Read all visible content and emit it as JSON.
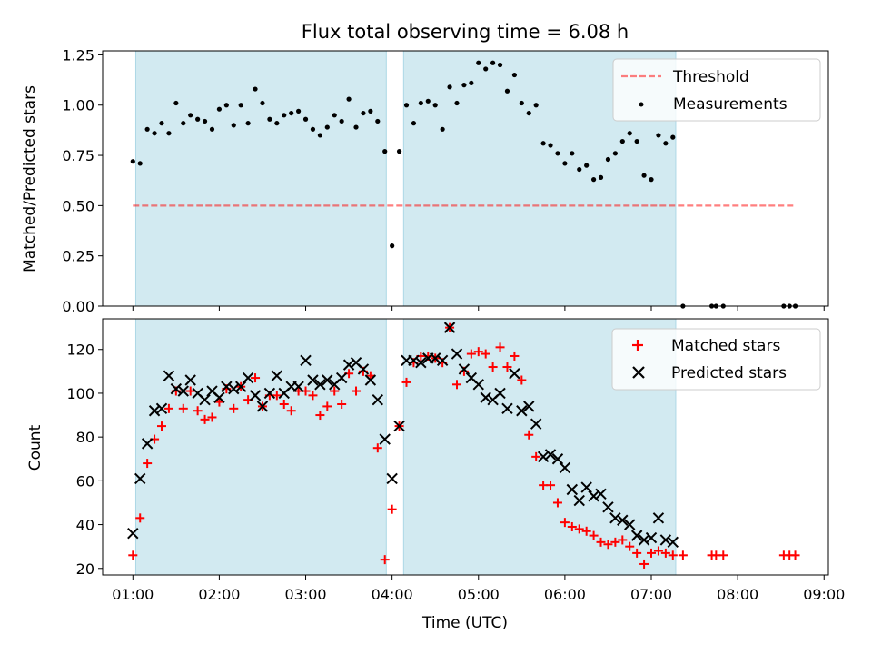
{
  "title": "Flux total observing time = 6.08 h",
  "colors": {
    "shade": "#add8e6",
    "threshold": "#ff0000",
    "measurement": "#000000",
    "matched": "#ff0000",
    "predicted": "#000000"
  },
  "chart_data": [
    {
      "type": "scatter",
      "panel": "top",
      "ylabel": "Matched/Predicted stars",
      "xlabel": "",
      "xlim_hours": [
        0.65,
        9.05
      ],
      "ylim": [
        0,
        1.27
      ],
      "yticks": [
        0.0,
        0.25,
        0.5,
        0.75,
        1.0,
        1.25
      ],
      "ytick_labels": [
        "0.00",
        "0.25",
        "0.50",
        "0.75",
        "1.00",
        "1.25"
      ],
      "xticks_hours": [
        1,
        2,
        3,
        4,
        5,
        6,
        7,
        8,
        9
      ],
      "grid": false,
      "legend_position": "top-right",
      "legend": [
        "Threshold",
        "Measurements"
      ],
      "shaded_intervals": [
        [
          "01:02",
          "03:56"
        ],
        [
          "04:08",
          "07:17"
        ]
      ],
      "threshold": {
        "name": "Threshold",
        "y": 0.5,
        "x_range": [
          "01:00",
          "08:40"
        ]
      },
      "series": [
        {
          "name": "Measurements",
          "x": [
            "01:00",
            "01:05",
            "01:10",
            "01:15",
            "01:20",
            "01:25",
            "01:30",
            "01:35",
            "01:40",
            "01:45",
            "01:50",
            "01:55",
            "02:00",
            "02:05",
            "02:10",
            "02:15",
            "02:20",
            "02:25",
            "02:30",
            "02:35",
            "02:40",
            "02:45",
            "02:50",
            "02:55",
            "03:00",
            "03:05",
            "03:10",
            "03:15",
            "03:20",
            "03:25",
            "03:30",
            "03:35",
            "03:40",
            "03:45",
            "03:50",
            "03:55",
            "04:00",
            "04:05",
            "04:10",
            "04:15",
            "04:20",
            "04:25",
            "04:30",
            "04:35",
            "04:40",
            "04:45",
            "04:50",
            "04:55",
            "05:00",
            "05:05",
            "05:10",
            "05:15",
            "05:20",
            "05:25",
            "05:30",
            "05:35",
            "05:40",
            "05:45",
            "05:50",
            "05:55",
            "06:00",
            "06:05",
            "06:10",
            "06:15",
            "06:20",
            "06:25",
            "06:30",
            "06:35",
            "06:40",
            "06:45",
            "06:50",
            "06:55",
            "07:00",
            "07:05",
            "07:10",
            "07:15",
            "07:22",
            "07:42",
            "07:45",
            "07:50",
            "08:32",
            "08:36",
            "08:40"
          ],
          "y": [
            0.72,
            0.71,
            0.88,
            0.86,
            0.91,
            0.86,
            1.01,
            0.91,
            0.95,
            0.93,
            0.92,
            0.88,
            0.98,
            1.0,
            0.9,
            1.0,
            0.91,
            1.08,
            1.01,
            0.93,
            0.91,
            0.95,
            0.96,
            0.97,
            0.93,
            0.88,
            0.85,
            0.89,
            0.95,
            0.92,
            1.03,
            0.89,
            0.96,
            0.97,
            0.92,
            0.77,
            0.3,
            0.77,
            1.0,
            0.91,
            1.01,
            1.02,
            1.0,
            0.88,
            1.09,
            1.01,
            1.1,
            1.11,
            1.21,
            1.18,
            1.21,
            1.2,
            1.07,
            1.15,
            1.01,
            0.96,
            1.0,
            0.81,
            0.8,
            0.76,
            0.71,
            0.76,
            0.68,
            0.7,
            0.63,
            0.64,
            0.73,
            0.76,
            0.82,
            0.86,
            0.82,
            0.65,
            0.63,
            0.85,
            0.81,
            0.84,
            0.0,
            0.0,
            0.0,
            0.0,
            0.0,
            0.0,
            0.0
          ]
        }
      ]
    },
    {
      "type": "scatter",
      "panel": "bottom",
      "ylabel": "Count",
      "xlabel": "Time (UTC)",
      "xlim_hours": [
        0.65,
        9.05
      ],
      "ylim": [
        17,
        134
      ],
      "yticks": [
        20,
        40,
        60,
        80,
        100,
        120
      ],
      "ytick_labels": [
        "20",
        "40",
        "60",
        "80",
        "100",
        "120"
      ],
      "xticks_hours": [
        1,
        2,
        3,
        4,
        5,
        6,
        7,
        8,
        9
      ],
      "xtick_labels": [
        "01:00",
        "02:00",
        "03:00",
        "04:00",
        "05:00",
        "06:00",
        "07:00",
        "08:00",
        "09:00"
      ],
      "grid": false,
      "legend_position": "top-right",
      "legend": [
        "Matched stars",
        "Predicted stars"
      ],
      "shaded_intervals": [
        [
          "01:02",
          "03:56"
        ],
        [
          "04:08",
          "07:17"
        ]
      ],
      "series": [
        {
          "name": "Matched stars",
          "x": [
            "01:00",
            "01:05",
            "01:10",
            "01:15",
            "01:20",
            "01:25",
            "01:30",
            "01:35",
            "01:40",
            "01:45",
            "01:50",
            "01:55",
            "02:00",
            "02:05",
            "02:10",
            "02:15",
            "02:20",
            "02:25",
            "02:30",
            "02:35",
            "02:40",
            "02:45",
            "02:50",
            "02:55",
            "03:00",
            "03:05",
            "03:10",
            "03:15",
            "03:20",
            "03:25",
            "03:30",
            "03:35",
            "03:40",
            "03:45",
            "03:50",
            "03:55",
            "04:00",
            "04:05",
            "04:10",
            "04:15",
            "04:20",
            "04:25",
            "04:30",
            "04:35",
            "04:40",
            "04:45",
            "04:50",
            "04:55",
            "05:00",
            "05:05",
            "05:10",
            "05:15",
            "05:20",
            "05:25",
            "05:30",
            "05:35",
            "05:40",
            "05:45",
            "05:50",
            "05:55",
            "06:00",
            "06:05",
            "06:10",
            "06:15",
            "06:20",
            "06:25",
            "06:30",
            "06:35",
            "06:40",
            "06:45",
            "06:50",
            "06:55",
            "07:00",
            "07:05",
            "07:10",
            "07:15",
            "07:22",
            "07:42",
            "07:45",
            "07:50",
            "08:32",
            "08:36",
            "08:40"
          ],
          "y": [
            26,
            43,
            68,
            79,
            85,
            93,
            101,
            93,
            101,
            92,
            88,
            89,
            96,
            102,
            93,
            103,
            97,
            107,
            94,
            99,
            99,
            95,
            92,
            101,
            101,
            99,
            90,
            94,
            101,
            95,
            109,
            101,
            110,
            108,
            75,
            24,
            47,
            85,
            105,
            114,
            117,
            117,
            116,
            114,
            130,
            104,
            110,
            118,
            119,
            118,
            112,
            121,
            112,
            117,
            106,
            81,
            71,
            58,
            58,
            50,
            41,
            39,
            38,
            37,
            35,
            32,
            31,
            32,
            33,
            30,
            27,
            22,
            27,
            28,
            27,
            26,
            26,
            26,
            26,
            26,
            26,
            26,
            26
          ]
        },
        {
          "name": "Predicted stars",
          "x": [
            "01:00",
            "01:05",
            "01:10",
            "01:15",
            "01:20",
            "01:25",
            "01:30",
            "01:35",
            "01:40",
            "01:45",
            "01:50",
            "01:55",
            "02:00",
            "02:05",
            "02:10",
            "02:15",
            "02:20",
            "02:25",
            "02:30",
            "02:35",
            "02:40",
            "02:45",
            "02:50",
            "02:55",
            "03:00",
            "03:05",
            "03:10",
            "03:15",
            "03:20",
            "03:25",
            "03:30",
            "03:35",
            "03:40",
            "03:45",
            "03:50",
            "03:55",
            "04:00",
            "04:05",
            "04:10",
            "04:15",
            "04:20",
            "04:25",
            "04:30",
            "04:35",
            "04:40",
            "04:45",
            "04:50",
            "04:55",
            "05:00",
            "05:05",
            "05:10",
            "05:15",
            "05:20",
            "05:25",
            "05:30",
            "05:35",
            "05:40",
            "05:45",
            "05:50",
            "05:55",
            "06:00",
            "06:05",
            "06:10",
            "06:15",
            "06:20",
            "06:25",
            "06:30",
            "06:35",
            "06:40",
            "06:45",
            "06:50",
            "06:55",
            "07:00",
            "07:05",
            "07:10",
            "07:15"
          ],
          "y": [
            36,
            61,
            77,
            92,
            93,
            108,
            102,
            101,
            106,
            100,
            97,
            101,
            98,
            103,
            102,
            103,
            107,
            99,
            94,
            100,
            108,
            100,
            103,
            103,
            115,
            106,
            104,
            106,
            104,
            107,
            113,
            114,
            111,
            106,
            97,
            79,
            61,
            85,
            115,
            115,
            114,
            116,
            116,
            115,
            130,
            118,
            111,
            107,
            104,
            98,
            97,
            100,
            93,
            109,
            92,
            94,
            86,
            71,
            72,
            70,
            66,
            56,
            51,
            57,
            53,
            54,
            48,
            43,
            42,
            40,
            35,
            33,
            34,
            43,
            33,
            32
          ]
        }
      ]
    }
  ]
}
